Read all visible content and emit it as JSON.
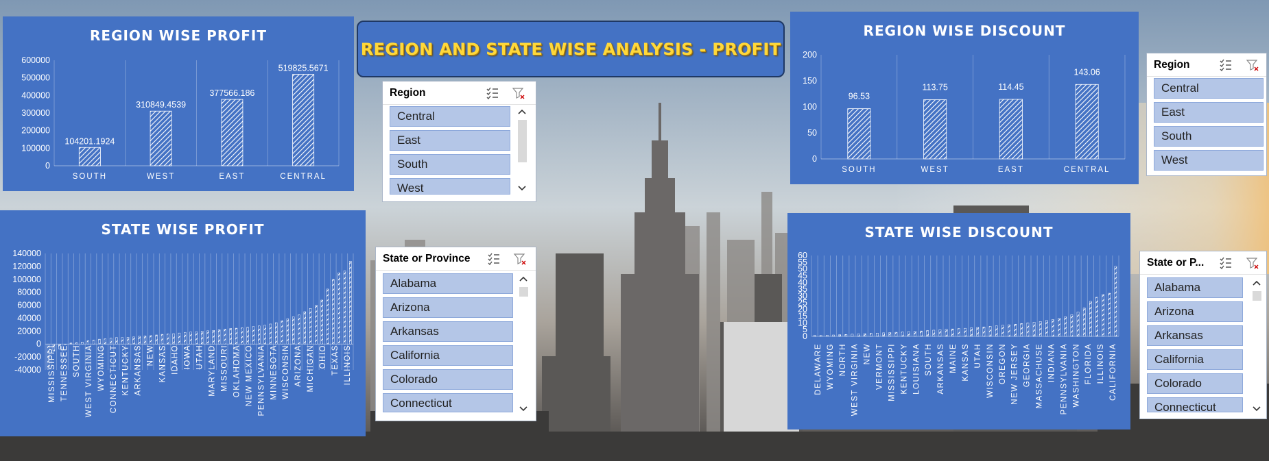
{
  "header": {
    "title": "REGION AND STATE WISE ANALYSIS - PROFIT"
  },
  "colors": {
    "panel": "#4472c4",
    "title_yellow": "#ffd83a",
    "slicer_item": "#b4c6e7"
  },
  "panels": {
    "region_profit": {
      "title": "REGION WISE PROFIT"
    },
    "region_discount": {
      "title": "REGION WISE DISCOUNT"
    },
    "state_profit": {
      "title": "STATE WISE PROFIT"
    },
    "state_discount": {
      "title": "STATE WISE DISCOUNT"
    }
  },
  "slicers": {
    "region_center": {
      "title": "Region",
      "items": [
        "Central",
        "East",
        "South",
        "West"
      ],
      "icons": [
        "multi-select-icon",
        "clear-filter-icon"
      ]
    },
    "state_center": {
      "title": "State or Province",
      "items": [
        "Alabama",
        "Arizona",
        "Arkansas",
        "California",
        "Colorado",
        "Connecticut"
      ],
      "icons": [
        "multi-select-icon",
        "clear-filter-icon"
      ]
    },
    "region_right": {
      "title": "Region",
      "items": [
        "Central",
        "East",
        "South",
        "West"
      ],
      "icons": [
        "multi-select-icon",
        "clear-filter-icon"
      ]
    },
    "state_right": {
      "title": "State or P...",
      "items": [
        "Alabama",
        "Arizona",
        "Arkansas",
        "California",
        "Colorado",
        "Connecticut"
      ],
      "icons": [
        "multi-select-icon",
        "clear-filter-icon"
      ]
    }
  },
  "chart_data": [
    {
      "id": "region_profit",
      "type": "bar",
      "title": "REGION WISE PROFIT",
      "categories": [
        "SOUTH",
        "WEST",
        "EAST",
        "CENTRAL"
      ],
      "values": [
        104201.1924,
        310849.4539,
        377566.186,
        519825.5671
      ],
      "data_labels": [
        "104201.1924",
        "310849.4539",
        "377566.186",
        "519825.5671"
      ],
      "ylim": [
        0,
        600000
      ],
      "yticks": [
        0,
        100000,
        200000,
        300000,
        400000,
        500000,
        600000
      ],
      "grid": "vertical",
      "pattern": "diagonal-hatch"
    },
    {
      "id": "region_discount",
      "type": "bar",
      "title": "REGION WISE DISCOUNT",
      "categories": [
        "SOUTH",
        "WEST",
        "EAST",
        "CENTRAL"
      ],
      "values": [
        96.53,
        113.75,
        114.45,
        143.06
      ],
      "data_labels": [
        "96.53",
        "113.75",
        "114.45",
        "143.06"
      ],
      "ylim": [
        0,
        200
      ],
      "yticks": [
        0,
        50,
        100,
        150,
        200
      ],
      "grid": "vertical",
      "pattern": "diagonal-hatch"
    },
    {
      "id": "state_profit",
      "type": "bar",
      "title": "STATE WISE PROFIT",
      "tick_labels": [
        "MISSISSIPPI",
        "TENNESSEE",
        "SOUTH",
        "WEST VIRGINIA",
        "WYOMING",
        "CONNECTICUT",
        "KENTUCKY",
        "ARKANSAS",
        "NEW",
        "KANSAS",
        "IDAHO",
        "IOWA",
        "UTAH",
        "MARYLAND",
        "MISSOURI",
        "OKLAHOMA",
        "NEW MEXICO",
        "PENNSYLVANIA",
        "MINNESOTA",
        "WISCONSIN",
        "ARIZONA",
        "MICHIGAN",
        "OHIO",
        "TEXAS",
        "ILLINOIS"
      ],
      "values": [
        -39000,
        -11000,
        -7500,
        -500,
        1500,
        2000,
        3000,
        5000,
        6000,
        7500,
        8000,
        9000,
        10000,
        10000,
        10500,
        11000,
        12000,
        12500,
        13000,
        14000,
        15000,
        15500,
        16000,
        17000,
        18000,
        18500,
        19000,
        20000,
        20500,
        21000,
        22000,
        23000,
        24000,
        24500,
        25000,
        26000,
        27000,
        28000,
        29000,
        31000,
        33000,
        36000,
        39000,
        42000,
        45000,
        50000,
        55000,
        60000,
        68000,
        85000,
        100000,
        110000,
        113000,
        128000
      ],
      "ylim": [
        -40000,
        140000
      ],
      "yticks": [
        -40000,
        -20000,
        0,
        20000,
        40000,
        60000,
        80000,
        100000,
        120000,
        140000
      ],
      "grid": "vertical",
      "pattern": "diagonal-hatch"
    },
    {
      "id": "state_discount",
      "type": "bar",
      "title": "STATE WISE DISCOUNT",
      "tick_labels": [
        "DELAWARE",
        "WYOMING",
        "NORTH",
        "WEST VIRGINIA",
        "NEW",
        "VERMONT",
        "MISSISSIPPI",
        "KENTUCKY",
        "LOUISIANA",
        "SOUTH",
        "ARKANSAS",
        "MAINE",
        "KANSAS",
        "UTAH",
        "WISCONSIN",
        "OREGON",
        "NEW JERSEY",
        "GEORGIA",
        "MASSACHUSE",
        "INDIANA",
        "PENNSYLVANIA",
        "WASHINGTON",
        "FLORIDA",
        "ILLINOIS",
        "CALIFORNIA"
      ],
      "values": [
        0.6,
        0.6,
        0.8,
        1,
        1.2,
        1.4,
        1.6,
        1.8,
        2,
        2.2,
        2.4,
        2.6,
        2.8,
        3,
        3.2,
        3.5,
        3.8,
        4,
        4.3,
        4.6,
        4.9,
        5.2,
        5.5,
        5.8,
        6,
        6.3,
        6.6,
        7,
        7.4,
        7.8,
        8.2,
        8.6,
        9,
        9.5,
        10,
        10.5,
        11,
        11.8,
        12.5,
        13.5,
        14.5,
        16,
        18,
        21,
        26,
        29,
        31,
        32,
        52
      ],
      "ylim": [
        0,
        60
      ],
      "yticks": [
        0,
        5,
        10,
        15,
        20,
        25,
        30,
        35,
        40,
        45,
        50,
        55,
        60
      ],
      "grid": "vertical",
      "pattern": "diagonal-hatch"
    }
  ]
}
